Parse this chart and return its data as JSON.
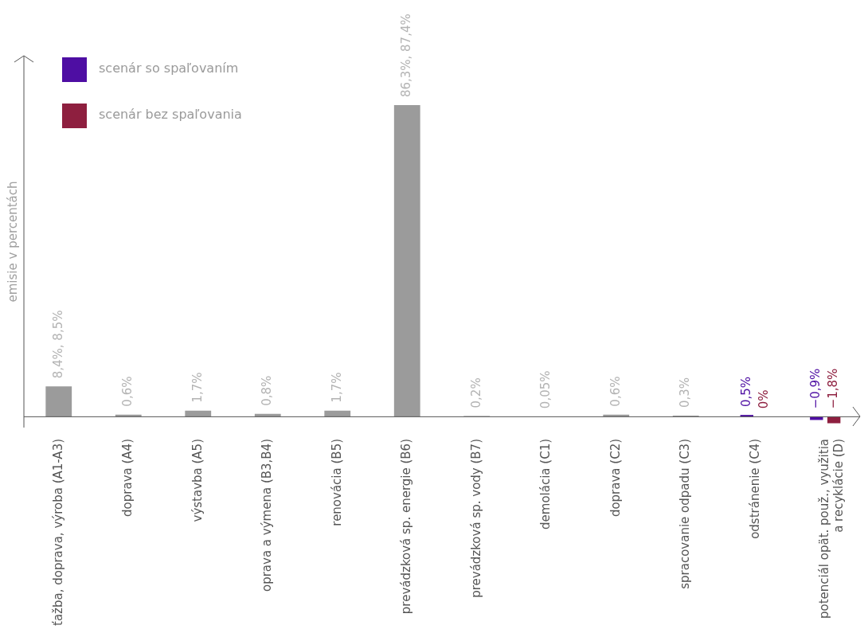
{
  "chart_data": {
    "type": "bar",
    "ylabel": "emisie v percentách",
    "categories": [
      "ťažba, doprava, výroba (A1-A3)",
      "doprava (A4)",
      "výstavba (A5)",
      "oprava a výmena (B3,B4)",
      "renovácia (B5)",
      "prevádzková sp. energie (B6)",
      "prevádzková sp. vody (B7)",
      "demolácia (C1)",
      "doprava (C2)",
      "spracovanie odpadu (C3)",
      "odstránenie (C4)",
      "potenciál opät. použ., využitia\na recyklácie (D)"
    ],
    "series": [
      {
        "color": "#9b9b9b",
        "values": [
          8.4,
          0.6,
          1.7,
          0.8,
          1.7,
          86.3,
          0.2,
          0.05,
          0.6,
          0.3,
          null,
          null
        ],
        "value_labels": [
          "8,4%, 8,5%",
          "0,6%",
          "1,7%",
          "0,8%",
          "1,7%",
          "86,3%, 87,4%",
          "0,2%",
          "0,05%",
          "0,6%",
          "0,3%",
          null,
          null
        ]
      },
      {
        "name": "scenár so spaľovaním",
        "color": "#4e0ea3",
        "values": [
          null,
          null,
          null,
          null,
          null,
          null,
          null,
          null,
          null,
          null,
          0.5,
          -0.9
        ],
        "value_labels": [
          null,
          null,
          null,
          null,
          null,
          null,
          null,
          null,
          null,
          null,
          "0,5%",
          "−0,9%"
        ]
      },
      {
        "name": "scenár bez spaľovania",
        "color": "#8e1f3f",
        "values": [
          null,
          null,
          null,
          null,
          null,
          null,
          null,
          null,
          null,
          null,
          0,
          -1.8
        ],
        "value_labels": [
          null,
          null,
          null,
          null,
          null,
          null,
          null,
          null,
          null,
          null,
          "0%",
          "−1,8%"
        ]
      }
    ],
    "ylim": [
      -3,
      100
    ],
    "tick_labels": "x",
    "grid": false,
    "legend": "top left"
  }
}
